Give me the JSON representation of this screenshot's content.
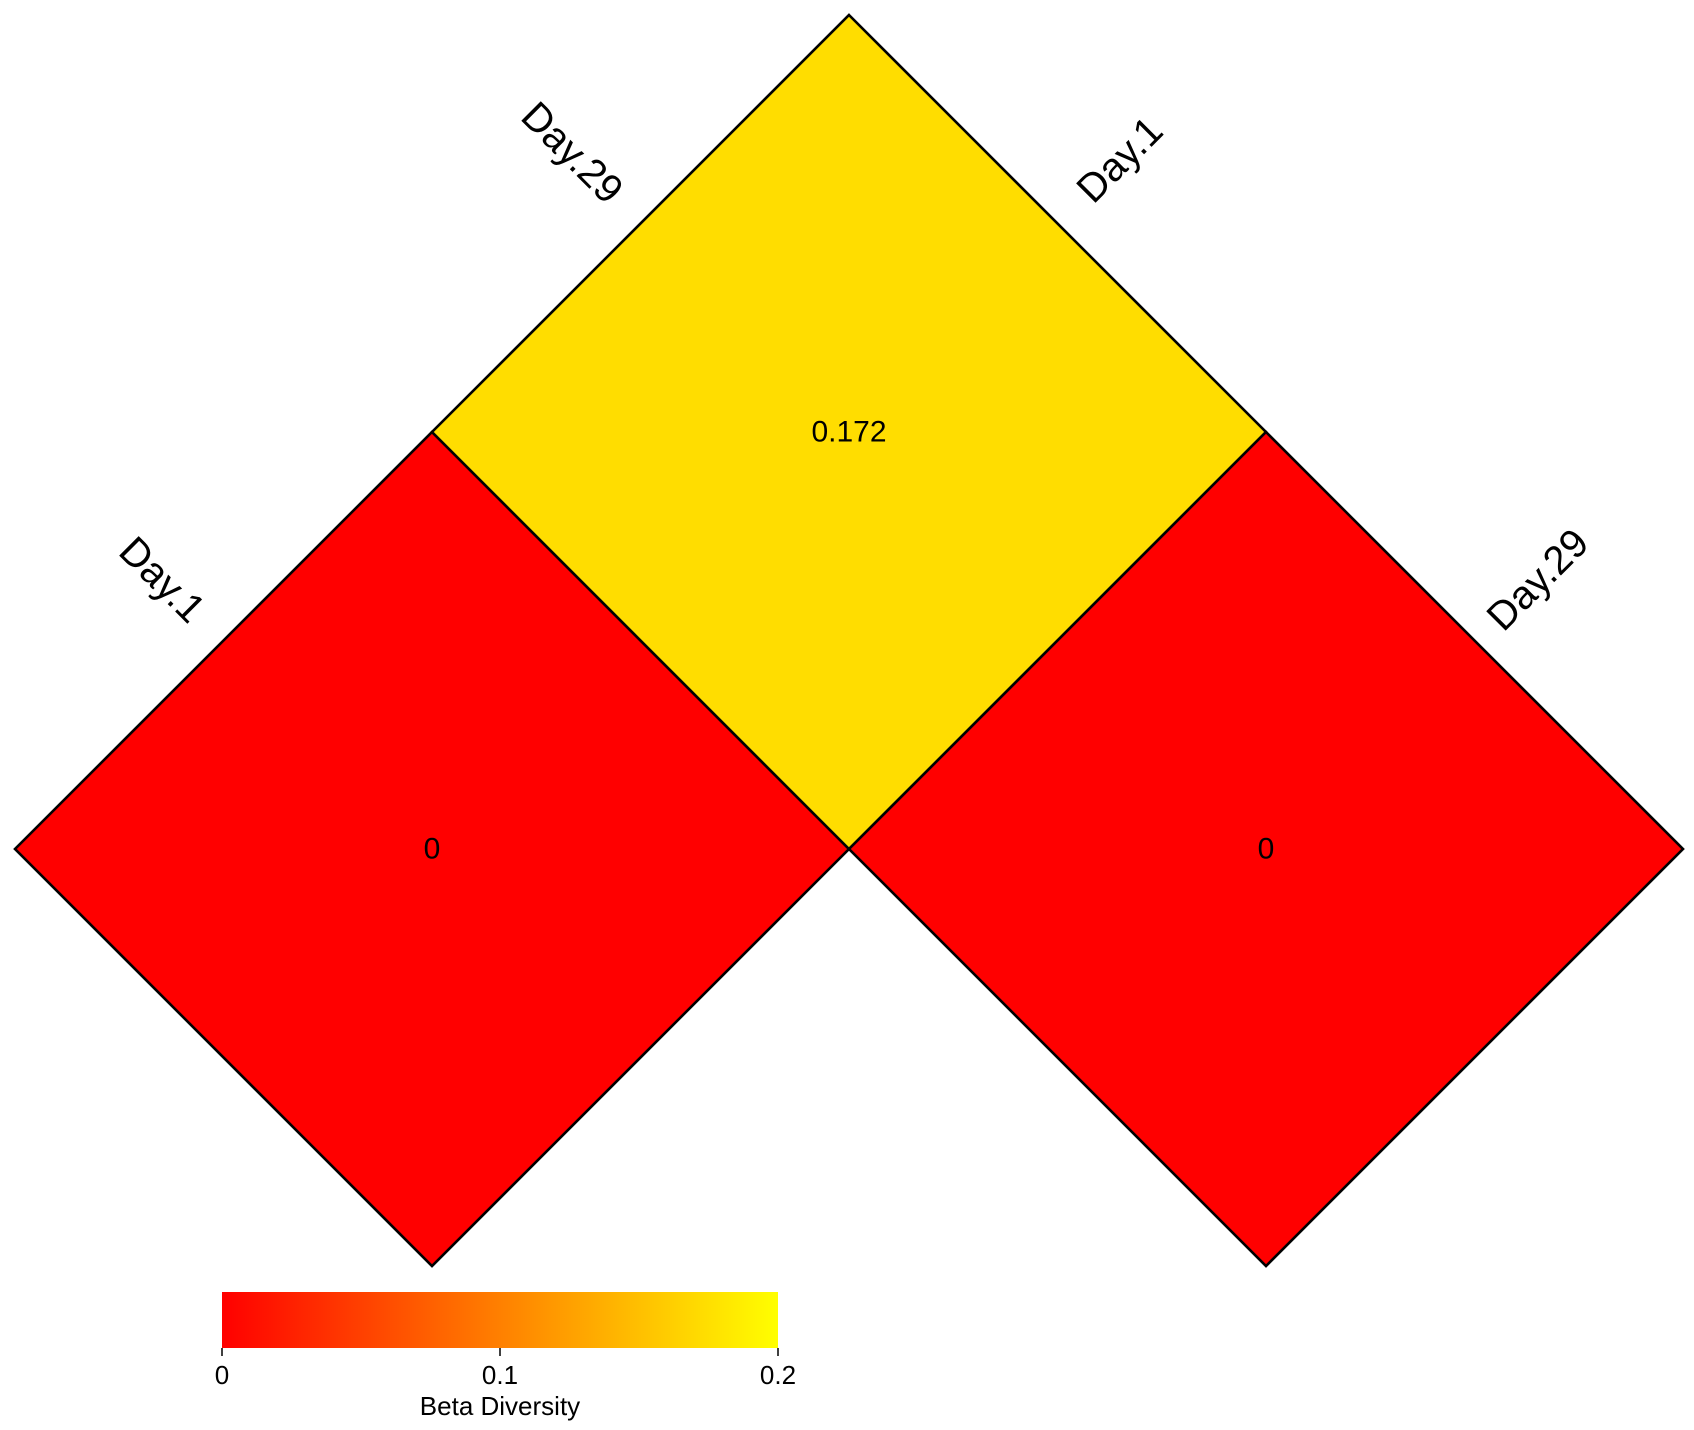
{
  "chart_data": {
    "type": "heatmap",
    "layout": "triangular pairwise matrix (rotated 45°)",
    "rows": [
      "Day.1",
      "Day.29"
    ],
    "columns": [
      "Day.29",
      "Day.1"
    ],
    "cells": [
      {
        "row": "Day.1",
        "col": "Day.1",
        "value": 0,
        "label": "0",
        "color": "#FF0000"
      },
      {
        "row": "Day.1",
        "col": "Day.29",
        "value": 0.172,
        "label": "0.172",
        "color": "#FFDD00"
      },
      {
        "row": "Day.29",
        "col": "Day.29",
        "value": 0,
        "label": "0",
        "color": "#FF0000"
      }
    ],
    "legend": {
      "title": "Beta Diversity",
      "range": [
        0,
        0.2
      ],
      "ticks": [
        {
          "value": 0,
          "label": "0"
        },
        {
          "value": 0.1,
          "label": "0.1"
        },
        {
          "value": 0.2,
          "label": "0.2"
        }
      ],
      "gradient": [
        "#FF0000",
        "#FF8000",
        "#FFFF00"
      ],
      "placement": "bottom-left"
    }
  }
}
